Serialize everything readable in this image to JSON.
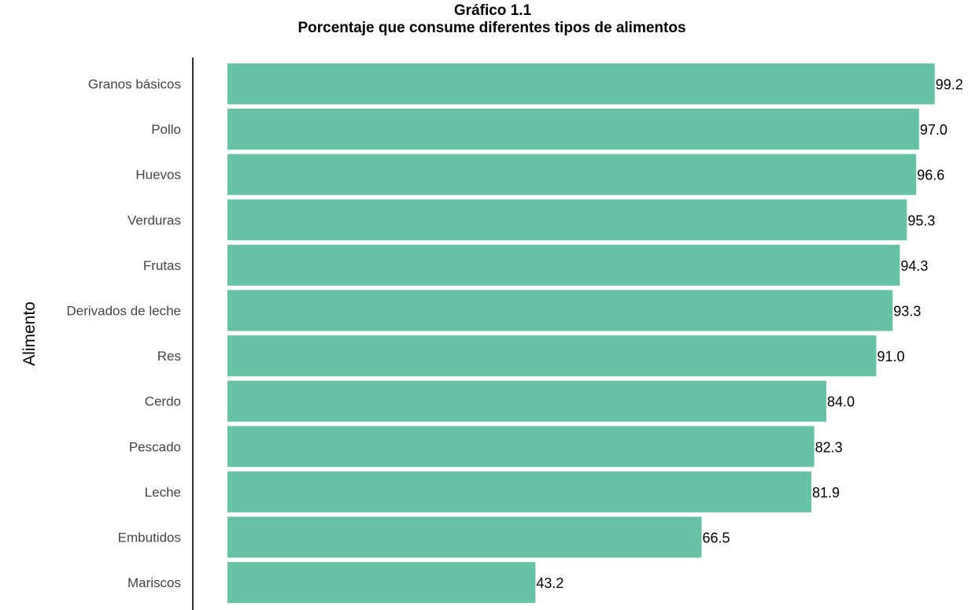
{
  "chart_data": {
    "type": "bar",
    "orientation": "horizontal",
    "title": "Gráfico 1.1",
    "subtitle": "Porcentaje que consume diferentes tipos de alimentos",
    "ylabel": "Alimento",
    "xlabel": "",
    "xlim": [
      0,
      100
    ],
    "grid": false,
    "bar_color": "#66c2a5",
    "categories": [
      "Granos básicos",
      "Pollo",
      "Huevos",
      "Verduras",
      "Frutas",
      "Derivados de leche",
      "Res",
      "Cerdo",
      "Pescado",
      "Leche",
      "Embutidos",
      "Mariscos"
    ],
    "values": [
      99.2,
      97.0,
      96.6,
      95.3,
      94.3,
      93.3,
      91.0,
      84.0,
      82.3,
      81.9,
      66.5,
      43.2
    ],
    "value_labels": [
      "99.2",
      "97.0",
      "96.6",
      "95.3",
      "94.3",
      "93.3",
      "91.0",
      "84.0",
      "82.3",
      "81.9",
      "66.5",
      "43.2"
    ]
  }
}
